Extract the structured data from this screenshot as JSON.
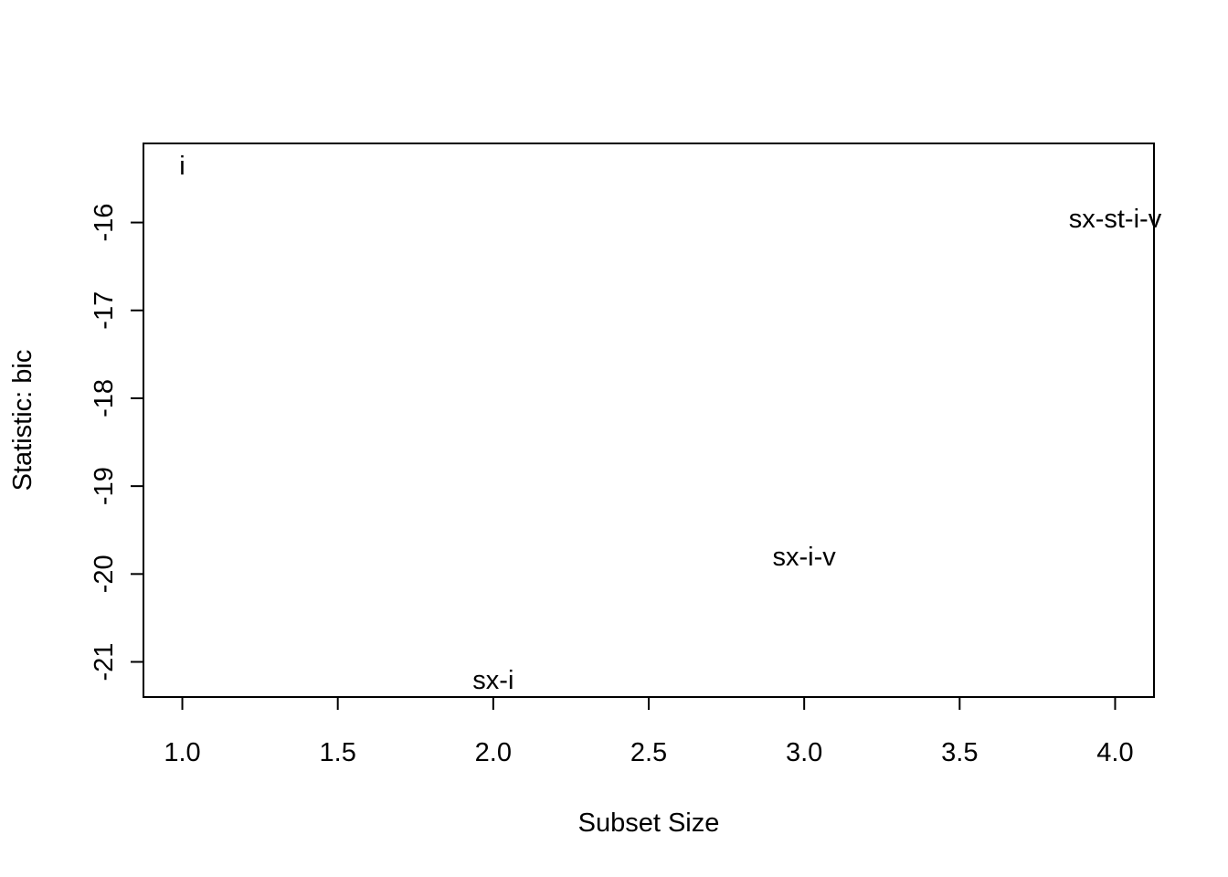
{
  "chart_data": {
    "type": "scatter",
    "title": "",
    "xlabel": "Subset Size",
    "ylabel": "Statistic: bic",
    "xlim": [
      0.875,
      4.125
    ],
    "ylim": [
      -21.4,
      -15.1
    ],
    "x_ticks": [
      "1.0",
      "1.5",
      "2.0",
      "2.5",
      "3.0",
      "3.5",
      "4.0"
    ],
    "y_ticks": [
      "-16",
      "-17",
      "-18",
      "-19",
      "-20",
      "-21"
    ],
    "x_tick_values": [
      1.0,
      1.5,
      2.0,
      2.5,
      3.0,
      3.5,
      4.0
    ],
    "y_tick_values": [
      -16,
      -17,
      -18,
      -19,
      -20,
      -21
    ],
    "grid": false,
    "points": [
      {
        "x": 1,
        "y": -15.35,
        "label": "i"
      },
      {
        "x": 2,
        "y": -21.2,
        "label": "sx-i"
      },
      {
        "x": 3,
        "y": -19.8,
        "label": "sx-i-v"
      },
      {
        "x": 4,
        "y": -15.95,
        "label": "sx-st-i-v"
      }
    ]
  }
}
